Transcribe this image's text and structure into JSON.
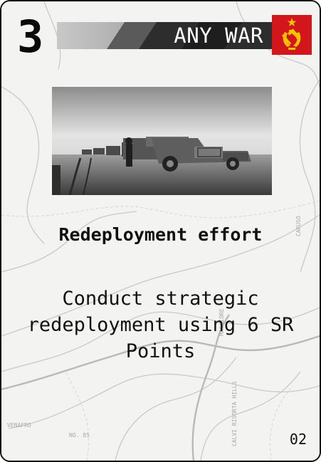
{
  "card": {
    "cost": "3",
    "banner_label": "ANY WAR",
    "faction_icon": "hammer-and-sickle-icon",
    "title": "Redeployment effort",
    "text": "Conduct strategic redeployment using 6 SR Points",
    "number": "02"
  },
  "colors": {
    "flag_red": "#d2161b",
    "flag_gold": "#f5c400",
    "banner_dark": "#2a2a2a",
    "banner_light": "#bdbdbd"
  },
  "map_labels": [
    "NO. 85",
    "VENAFRO",
    "CALVI RISORTA HILLS",
    "MAGGIORE",
    "CARUSO"
  ]
}
